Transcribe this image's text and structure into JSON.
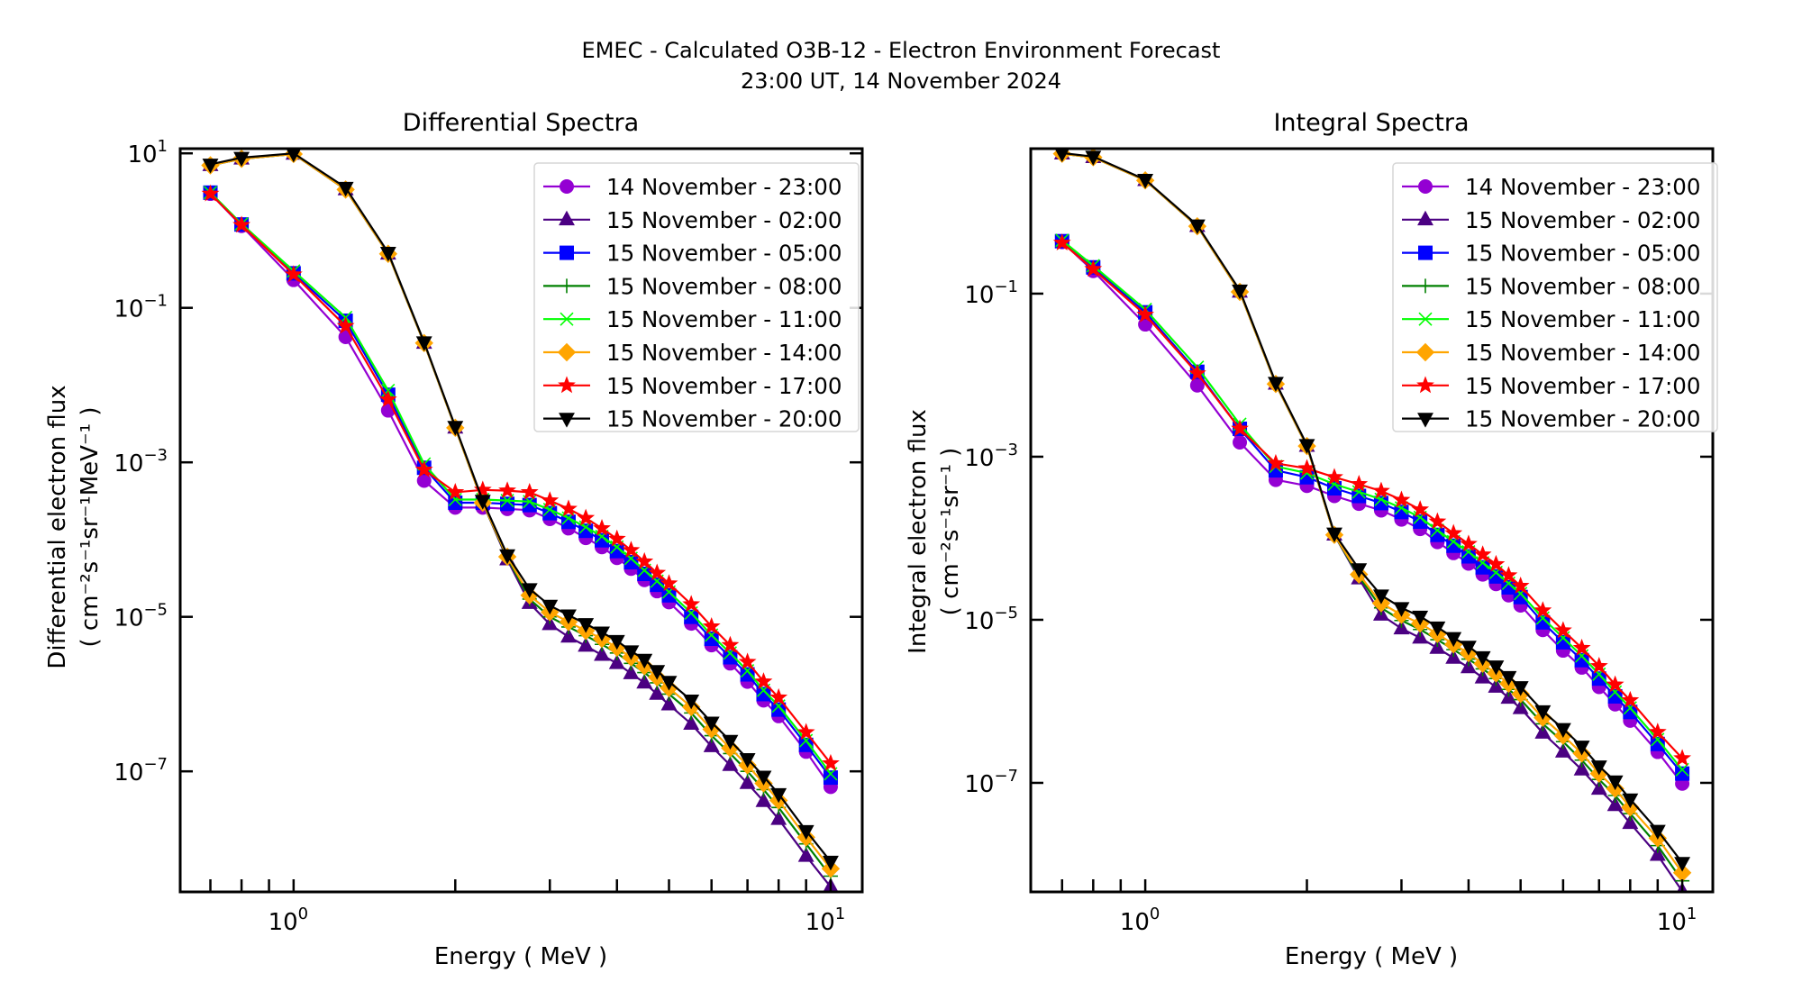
{
  "figure": {
    "suptitle_line1": "EMEC - Calculated O3B-12 - Electron Environment Forecast",
    "suptitle_line2": "23:00 UT, 14 November 2024"
  },
  "chart_data": [
    {
      "type": "line",
      "title": "Differential Spectra",
      "xlabel": "Energy ( MeV )",
      "ylabel_line1": "Differential electron flux",
      "ylabel_line2": "( cm⁻²s⁻¹sr⁻¹MeV⁻¹ )",
      "xscale": "log",
      "yscale": "log",
      "xlim": [
        0.615,
        11.45
      ],
      "ylim": [
        2.75e-09,
        11.5
      ],
      "xticks": [
        {
          "value": 1,
          "base": "10",
          "exp": "0"
        },
        {
          "value": 10,
          "base": "10",
          "exp": "1"
        }
      ],
      "yticks": [
        {
          "value": 10,
          "base": "10",
          "exp": "1"
        },
        {
          "value": 0.1,
          "base": "10",
          "exp": "−1"
        },
        {
          "value": 0.001,
          "base": "10",
          "exp": "−3"
        },
        {
          "value": 1e-05,
          "base": "10",
          "exp": "−5"
        },
        {
          "value": 1e-07,
          "base": "10",
          "exp": "−7"
        }
      ],
      "legend_position": "upper-right",
      "x": [
        0.7,
        0.8,
        1.0,
        1.25,
        1.5,
        1.75,
        2.0,
        2.25,
        2.5,
        2.75,
        3.0,
        3.25,
        3.5,
        3.75,
        4.0,
        4.25,
        4.5,
        4.75,
        5.0,
        5.5,
        6.0,
        6.5,
        7.0,
        7.5,
        8.0,
        9.0,
        10.0
      ],
      "series": [
        {
          "name": "14 November - 23:00",
          "color": "#9400d3",
          "marker": "circle",
          "values": [
            3.0,
            1.15,
            0.23,
            0.042,
            0.0047,
            0.00058,
            0.00026,
            0.00026,
            0.00025,
            0.00024,
            0.000185,
            0.00014,
            0.000105,
            8e-05,
            5.8e-05,
            4.2e-05,
            3e-05,
            2.15e-05,
            1.55e-05,
            8.2e-06,
            4.3e-06,
            2.5e-06,
            1.45e-06,
            8.3e-07,
            5.2e-07,
            1.8e-07,
            6.3e-08
          ]
        },
        {
          "name": "15 November - 02:00",
          "color": "#4b0082",
          "marker": "triangle-up",
          "values": [
            7.0,
            8.5,
            9.8,
            3.4,
            0.5,
            0.035,
            0.0028,
            0.0003,
            5.5e-05,
            1.5e-05,
            8e-06,
            5.5e-06,
            4.2e-06,
            3.2e-06,
            2.5e-06,
            1.85e-06,
            1.4e-06,
            1e-06,
            7.3e-07,
            4.1e-07,
            2.1e-07,
            1.2e-07,
            7e-08,
            4.1e-08,
            2.4e-08,
            8e-09,
            3.2e-09
          ]
        },
        {
          "name": "15 November - 05:00",
          "color": "#0000ff",
          "marker": "square",
          "values": [
            3.1,
            1.2,
            0.28,
            0.068,
            0.0075,
            0.00085,
            0.0003,
            0.0003,
            0.00029,
            0.00028,
            0.00022,
            0.00017,
            0.00013,
            9.8e-05,
            7.1e-05,
            5.1e-05,
            3.6e-05,
            2.6e-05,
            1.9e-05,
            1e-05,
            5.2e-06,
            3e-06,
            1.8e-06,
            1e-06,
            6.3e-07,
            2.2e-07,
            8.3e-08
          ]
        },
        {
          "name": "15 November - 08:00",
          "color": "#008000",
          "marker": "plus",
          "values": [
            7.0,
            8.5,
            9.8,
            3.4,
            0.5,
            0.035,
            0.0028,
            0.0003,
            5.8e-05,
            1.7e-05,
            1e-05,
            7.4e-06,
            5.7e-06,
            4.4e-06,
            3.4e-06,
            2.5e-06,
            1.9e-06,
            1.4e-06,
            1e-06,
            5.7e-07,
            2.9e-07,
            1.7e-07,
            1e-07,
            5.8e-08,
            3.4e-08,
            1.15e-08,
            4.4e-09
          ]
        },
        {
          "name": "15 November - 11:00",
          "color": "#00ff00",
          "marker": "x",
          "values": [
            3.1,
            1.22,
            0.3,
            0.075,
            0.0085,
            0.00095,
            0.00033,
            0.00033,
            0.00032,
            0.00031,
            0.000245,
            0.00019,
            0.000145,
            0.00011,
            8e-05,
            5.7e-05,
            4e-05,
            2.9e-05,
            2.1e-05,
            1.12e-05,
            5.8e-06,
            3.4e-06,
            2e-06,
            1.12e-06,
            7e-07,
            2.5e-07,
            9.3e-08
          ]
        },
        {
          "name": "15 November - 14:00",
          "color": "#ffa500",
          "marker": "diamond",
          "values": [
            7.0,
            8.5,
            9.8,
            3.4,
            0.5,
            0.035,
            0.0028,
            0.0003,
            6e-05,
            1.9e-05,
            1.15e-05,
            8.6e-06,
            6.6e-06,
            5.2e-06,
            4e-06,
            3e-06,
            2.3e-06,
            1.65e-06,
            1.2e-06,
            6.8e-07,
            3.5e-07,
            2e-07,
            1.2e-07,
            7e-08,
            4.2e-08,
            1.4e-08,
            5.5e-09
          ]
        },
        {
          "name": "15 November - 17:00",
          "color": "#ff0000",
          "marker": "star",
          "values": [
            3.0,
            1.18,
            0.27,
            0.058,
            0.0065,
            0.0008,
            0.00041,
            0.00044,
            0.00043,
            0.00041,
            0.00032,
            0.00025,
            0.00019,
            0.00014,
            0.000102,
            7.3e-05,
            5.2e-05,
            3.7e-05,
            2.7e-05,
            1.45e-05,
            7.5e-06,
            4.3e-06,
            2.6e-06,
            1.45e-06,
            9e-07,
            3.2e-07,
            1.27e-07
          ]
        },
        {
          "name": "15 November - 20:00",
          "color": "#000000",
          "marker": "triangle-down",
          "values": [
            7.2,
            8.8,
            10.0,
            3.6,
            0.52,
            0.036,
            0.0029,
            0.00032,
            6.3e-05,
            2.3e-05,
            1.4e-05,
            1.05e-05,
            8.1e-06,
            6.3e-06,
            4.9e-06,
            3.6e-06,
            2.8e-06,
            2e-06,
            1.45e-06,
            8.3e-07,
            4.3e-07,
            2.5e-07,
            1.45e-07,
            8.6e-08,
            5.1e-08,
            1.7e-08,
            6.8e-09
          ]
        }
      ]
    },
    {
      "type": "line",
      "title": "Integral Spectra",
      "xlabel": "Energy ( MeV )",
      "ylabel_line1": "Integral electron flux",
      "ylabel_line2": "( cm⁻²s⁻¹sr⁻¹ )",
      "xscale": "log",
      "yscale": "log",
      "xlim": [
        0.612,
        11.4
      ],
      "ylim": [
        4.6e-09,
        6.0
      ],
      "xticks": [
        {
          "value": 1,
          "base": "10",
          "exp": "0"
        },
        {
          "value": 10,
          "base": "10",
          "exp": "1"
        }
      ],
      "yticks": [
        {
          "value": 0.1,
          "base": "10",
          "exp": "−1"
        },
        {
          "value": 0.001,
          "base": "10",
          "exp": "−3"
        },
        {
          "value": 1e-05,
          "base": "10",
          "exp": "−5"
        },
        {
          "value": 1e-07,
          "base": "10",
          "exp": "−7"
        }
      ],
      "legend_position": "upper-right",
      "x": [
        0.7,
        0.8,
        1.0,
        1.25,
        1.5,
        1.75,
        2.0,
        2.25,
        2.5,
        2.75,
        3.0,
        3.25,
        3.5,
        3.75,
        4.0,
        4.25,
        4.5,
        4.75,
        5.0,
        5.5,
        6.0,
        6.5,
        7.0,
        7.5,
        8.0,
        9.0,
        10.0
      ],
      "series": [
        {
          "name": "14 November - 23:00",
          "color": "#9400d3",
          "marker": "circle",
          "values": [
            0.43,
            0.19,
            0.042,
            0.0075,
            0.0015,
            0.00052,
            0.00044,
            0.00033,
            0.000265,
            0.00022,
            0.00017,
            0.00013,
            9e-05,
            6.6e-05,
            4.9e-05,
            3.6e-05,
            2.75e-05,
            2e-05,
            1.5e-05,
            7.5e-06,
            4.2e-06,
            2.6e-06,
            1.5e-06,
            9.2e-07,
            5.8e-07,
            2.4e-07,
            9.8e-08
          ]
        },
        {
          "name": "15 November - 02:00",
          "color": "#4b0082",
          "marker": "triangle-up",
          "values": [
            5.2,
            4.7,
            2.45,
            0.67,
            0.105,
            0.0078,
            0.00135,
            0.00011,
            3.2e-05,
            1.15e-05,
            7.8e-06,
            6e-06,
            4.5e-06,
            3.4e-06,
            2.6e-06,
            1.95e-06,
            1.5e-06,
            1.1e-06,
            8.2e-07,
            4.1e-07,
            2.4e-07,
            1.45e-07,
            8.4e-08,
            5.3e-08,
            3.2e-08,
            1.3e-08,
            4.7e-09
          ]
        },
        {
          "name": "15 November - 05:00",
          "color": "#0000ff",
          "marker": "square",
          "values": [
            0.44,
            0.21,
            0.059,
            0.011,
            0.0022,
            0.00068,
            0.00056,
            0.00041,
            0.00033,
            0.00027,
            0.00021,
            0.00016,
            0.00011,
            8.1e-05,
            6e-05,
            4.4e-05,
            3.4e-05,
            2.5e-05,
            1.9e-05,
            9.3e-06,
            5.3e-06,
            3.2e-06,
            1.9e-06,
            1.15e-06,
            7.4e-07,
            3e-07,
            1.3e-07
          ]
        },
        {
          "name": "15 November - 08:00",
          "color": "#008000",
          "marker": "plus",
          "values": [
            5.2,
            4.7,
            2.45,
            0.67,
            0.105,
            0.0078,
            0.00135,
            0.00011,
            3.4e-05,
            1.4e-05,
            9.8e-06,
            7.6e-06,
            5.7e-06,
            4.3e-06,
            3.3e-06,
            2.5e-06,
            1.9e-06,
            1.4e-06,
            1.05e-06,
            5.3e-07,
            3.2e-07,
            1.9e-07,
            1.1e-07,
            7e-08,
            4.2e-08,
            1.7e-08,
            6.3e-09
          ]
        },
        {
          "name": "15 November - 11:00",
          "color": "#00ff00",
          "marker": "x",
          "values": [
            0.45,
            0.22,
            0.064,
            0.0125,
            0.0025,
            0.00076,
            0.00063,
            0.00046,
            0.00037,
            0.0003,
            0.000235,
            0.00018,
            0.000125,
            9.1e-05,
            6.8e-05,
            5e-05,
            3.8e-05,
            2.8e-05,
            2.1e-05,
            1.05e-05,
            6e-06,
            3.6e-06,
            2.15e-06,
            1.3e-06,
            8.3e-07,
            3.4e-07,
            1.45e-07
          ]
        },
        {
          "name": "15 November - 14:00",
          "color": "#ffa500",
          "marker": "diamond",
          "values": [
            5.2,
            4.7,
            2.45,
            0.67,
            0.105,
            0.0078,
            0.00135,
            0.00011,
            3.6e-05,
            1.6e-05,
            1.15e-05,
            9e-06,
            6.7e-06,
            5e-06,
            3.9e-06,
            2.9e-06,
            2.2e-06,
            1.65e-06,
            1.23e-06,
            6.3e-07,
            3.8e-07,
            2.3e-07,
            1.3e-07,
            8.5e-08,
            5e-08,
            2.1e-08,
            7.9e-09
          ]
        },
        {
          "name": "15 November - 17:00",
          "color": "#ff0000",
          "marker": "star",
          "values": [
            0.42,
            0.2,
            0.055,
            0.0105,
            0.0022,
            0.00083,
            0.00072,
            0.00056,
            0.00046,
            0.00038,
            0.000295,
            0.000225,
            0.00016,
            0.000115,
            8.5e-05,
            6.3e-05,
            4.8e-05,
            3.5e-05,
            2.6e-05,
            1.3e-05,
            7.4e-06,
            4.5e-06,
            2.7e-06,
            1.6e-06,
            1.03e-06,
            4.2e-07,
            2e-07
          ]
        },
        {
          "name": "15 November - 20:00",
          "color": "#000000",
          "marker": "triangle-down",
          "values": [
            5.3,
            4.8,
            2.5,
            0.69,
            0.11,
            0.0081,
            0.0014,
            0.000115,
            4.2e-05,
            2e-05,
            1.4e-05,
            1.1e-05,
            8.1e-06,
            6e-06,
            4.7e-06,
            3.5e-06,
            2.7e-06,
            2e-06,
            1.5e-06,
            7.6e-07,
            4.6e-07,
            2.8e-07,
            1.6e-07,
            1.05e-07,
            6.3e-08,
            2.6e-08,
            1.05e-08
          ]
        }
      ]
    }
  ]
}
